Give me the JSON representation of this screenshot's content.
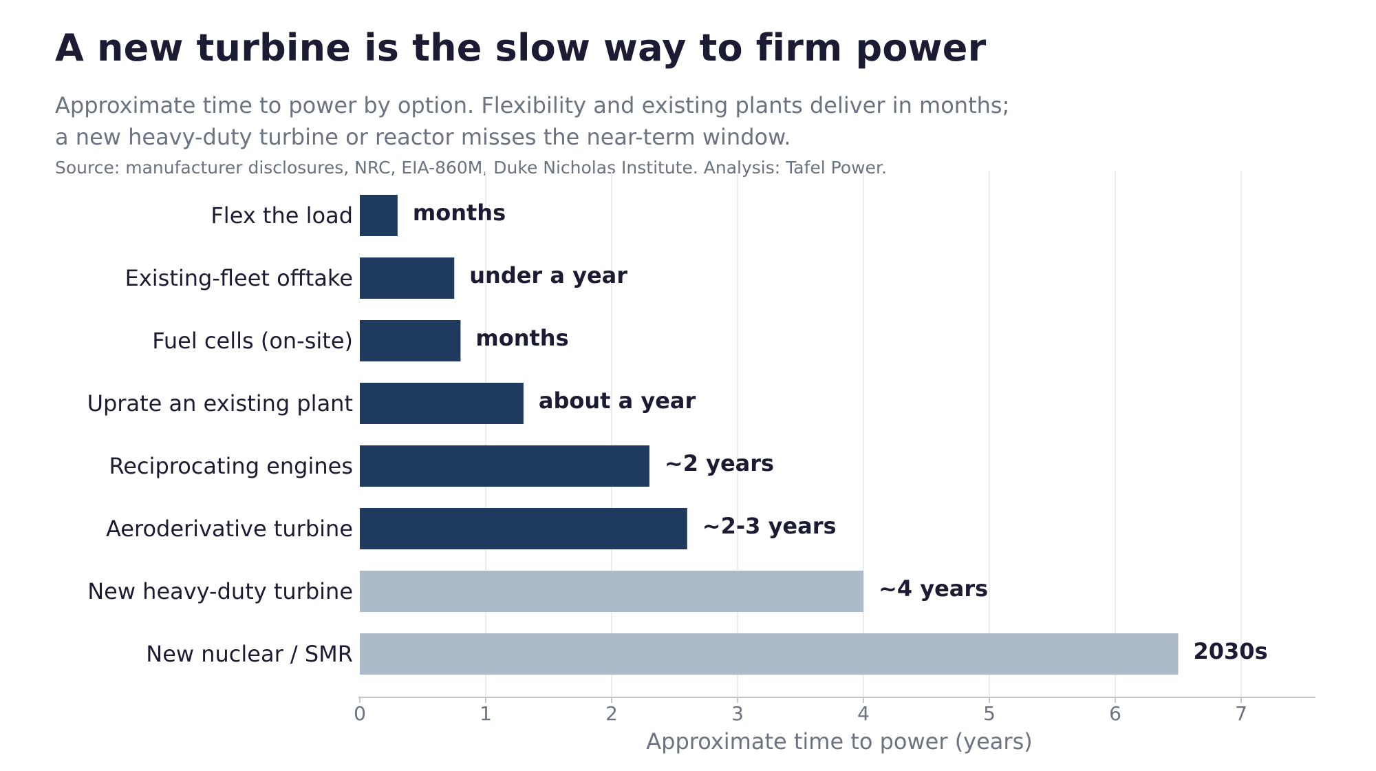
{
  "header": {
    "title": "A new turbine is the slow way to firm power",
    "subtitle_lines": [
      "Approximate time to power by option. Flexibility and existing plants deliver in months;",
      "a new heavy-duty turbine or reactor misses the near-term window."
    ],
    "source": "Source: manufacturer disclosures, NRC, EIA-860M, Duke Nicholas Institute. Analysis: Tafel Power."
  },
  "colors": {
    "bar_near_term": "#1e3a5f",
    "bar_long_term": "#adbac9",
    "label_text": "#1b1c33",
    "muted_text": "#6b7280",
    "grid": "#ebedf0",
    "axis": "#c4c8ce"
  },
  "chart_data": {
    "type": "bar",
    "orientation": "horizontal",
    "categories": [
      "Flex the load",
      "Existing-fleet offtake",
      "Fuel cells (on-site)",
      "Uprate an existing plant",
      "Reciprocating engines",
      "Aeroderivative turbine",
      "New heavy-duty turbine",
      "New nuclear / SMR"
    ],
    "values": [
      0.3,
      0.75,
      0.8,
      1.3,
      2.3,
      2.6,
      4.0,
      6.5
    ],
    "data_labels": [
      "months",
      "under a year",
      "months",
      "about a year",
      "~2 years",
      "~2-3 years",
      "~4 years",
      "2030s"
    ],
    "bar_color_keys": [
      "bar_near_term",
      "bar_near_term",
      "bar_near_term",
      "bar_near_term",
      "bar_near_term",
      "bar_near_term",
      "bar_long_term",
      "bar_long_term"
    ],
    "xlabel": "Approximate time to power (years)",
    "ylabel": "",
    "xlim": [
      0,
      7.6
    ],
    "xticks": [
      0,
      1,
      2,
      3,
      4,
      5,
      6,
      7
    ],
    "grid": "vertical"
  }
}
